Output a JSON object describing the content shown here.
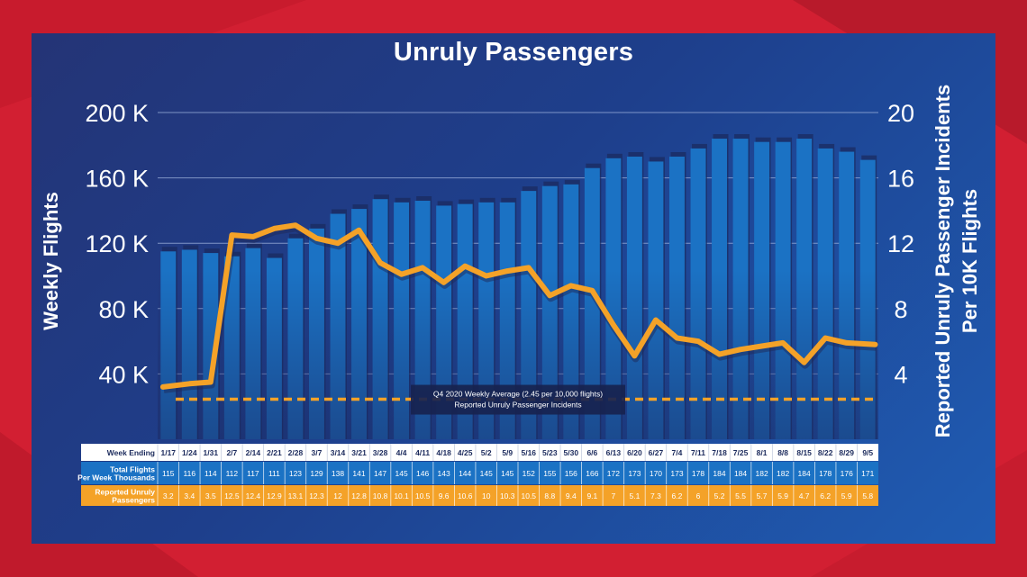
{
  "chart_data": {
    "type": "bar",
    "title": "Unruly Passengers",
    "ylabel": "Weekly Flights",
    "y2label_lines": [
      "Reported Unruly Passenger Incidents",
      "Per 10K Flights"
    ],
    "ylim": [
      0,
      200
    ],
    "y2lim": [
      0,
      20
    ],
    "yticks": [
      {
        "value": 40,
        "label": "40 K"
      },
      {
        "value": 80,
        "label": "80 K"
      },
      {
        "value": 120,
        "label": "120 K"
      },
      {
        "value": 160,
        "label": "160 K"
      },
      {
        "value": 200,
        "label": "200 K"
      }
    ],
    "y2ticks": [
      {
        "value": 4,
        "label": "4"
      },
      {
        "value": 8,
        "label": "8"
      },
      {
        "value": 12,
        "label": "12"
      },
      {
        "value": 16,
        "label": "16"
      },
      {
        "value": 20,
        "label": "20"
      }
    ],
    "grid": true,
    "categories": [
      "1/17",
      "1/24",
      "1/31",
      "2/7",
      "2/14",
      "2/21",
      "2/28",
      "3/7",
      "3/14",
      "3/21",
      "3/28",
      "4/4",
      "4/11",
      "4/18",
      "4/25",
      "5/2",
      "5/9",
      "5/16",
      "5/23",
      "5/30",
      "6/6",
      "6/13",
      "6/20",
      "6/27",
      "7/4",
      "7/11",
      "7/18",
      "7/25",
      "8/1",
      "8/8",
      "8/15",
      "8/22",
      "8/29",
      "9/5"
    ],
    "series": [
      {
        "name": "Total Flights Per Week Thousands",
        "type": "bar",
        "axis": "left",
        "color": "#1b72c4",
        "values": [
          115,
          116,
          114,
          112,
          117,
          111,
          123,
          129,
          138,
          141,
          147,
          145,
          146,
          143,
          144,
          145,
          145,
          152,
          155,
          156,
          166,
          172,
          173,
          170,
          173,
          178,
          184,
          184,
          182,
          182,
          184,
          178,
          176,
          171
        ]
      },
      {
        "name": "Reported Unruly Passengers",
        "type": "line",
        "axis": "right",
        "color": "#f4a228",
        "values": [
          3.2,
          3.4,
          3.5,
          12.5,
          12.4,
          12.9,
          13.1,
          12.3,
          12,
          12.8,
          10.8,
          10.1,
          10.5,
          9.6,
          10.6,
          10,
          10.3,
          10.5,
          8.8,
          9.4,
          9.1,
          7,
          5.1,
          7.3,
          6.2,
          6,
          5.2,
          5.5,
          5.7,
          5.9,
          4.7,
          6.2,
          5.9,
          5.8
        ]
      }
    ],
    "reference_line": {
      "axis": "right",
      "value": 2.45,
      "color": "#f4a228",
      "label_lines": [
        "Q4 2020 Weekly Average (2.45 per 10,000 flights)",
        "Reported Unruly Passenger Incidents"
      ]
    },
    "table": {
      "row_labels": [
        {
          "lines": [
            "Week Ending"
          ]
        },
        {
          "lines": [
            "Total Flights",
            "Per Week Thousands"
          ]
        },
        {
          "lines": [
            "Reported Unruly",
            "Passengers"
          ]
        }
      ],
      "flights_display": [
        "115",
        "116",
        "114",
        "112",
        "117",
        "111",
        "123",
        "129",
        "138",
        "141",
        "147",
        "145",
        "146",
        "143",
        "144",
        "145",
        "145",
        "152",
        "155",
        "156",
        "166",
        "172",
        "173",
        "170",
        "173",
        "178",
        "184",
        "184",
        "182",
        "182",
        "184",
        "178",
        "176",
        "171"
      ],
      "incidents_display": [
        "3.2",
        "3.4",
        "3.5",
        "12.5",
        "12.4",
        "12.9",
        "13.1",
        "12.3",
        "12",
        "12.8",
        "10.8",
        "10.1",
        "10.5",
        "9.6",
        "10.6",
        "10",
        "10.3",
        "10.5",
        "8.8",
        "9.4",
        "9.1",
        "7",
        "5.1",
        "7.3",
        "6.2",
        "6",
        "5.2",
        "5.5",
        "5.7",
        "5.9",
        "4.7",
        "6.2",
        "5.9",
        "5.8"
      ]
    }
  }
}
